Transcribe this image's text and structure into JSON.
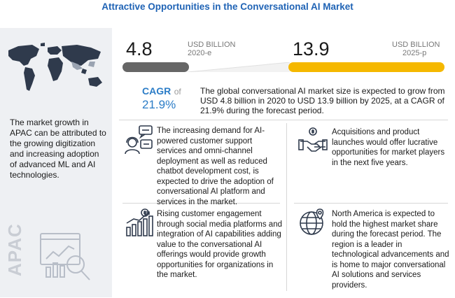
{
  "title": "Attractive Opportunities in the Conversational AI Market",
  "market": {
    "value_2020": "4.8",
    "unit_2020_line1": "USD BILLION",
    "unit_2020_line2": "2020-e",
    "value_2025": "13.9",
    "unit_2025_line1": "USD BILLION",
    "unit_2025_line2": "2025-p",
    "cagr_label": "CAGR",
    "cagr_of": "of",
    "cagr_value": "21.9%",
    "description": "The global conversational AI market size is expected to grow from USD 4.8 billion in 2020 to USD 13.9 billion by 2025, at a CAGR of 21.9% during the forecast period."
  },
  "apac": {
    "label": "APAC",
    "text": "The market growth in APAC can be attributed to the growing digitization and increasing adoption of advanced ML and AI technologies."
  },
  "boxes": [
    {
      "icon": "customer-support-icon",
      "text": "The increasing demand for AI-powered customer support services and omni-channel deployment as well as reduced chatbot development cost, is expected to drive the adoption of conversational AI platform and services in the market."
    },
    {
      "icon": "acquisition-handshake-icon",
      "text": "Acquisitions and product launches would offer lucrative opportunities for market players in the next five years."
    },
    {
      "icon": "growth-chart-icon",
      "text": "Rising customer engagement through social media platforms and integration of AI capabilities adding value to the conversational AI offerings would provide growth opportunities for organizations in the market."
    },
    {
      "icon": "globe-location-icon",
      "text": "North America is expected to hold the highest market share during the forecast period. The region is a leader in technological advancements and is home to major conversational AI solutions and services providers."
    }
  ],
  "colors": {
    "title": "#1f63b5",
    "accent_yellow": "#f5b800",
    "cagr_blue": "#2c7dc7",
    "panel_bg": "#eef0f3"
  }
}
